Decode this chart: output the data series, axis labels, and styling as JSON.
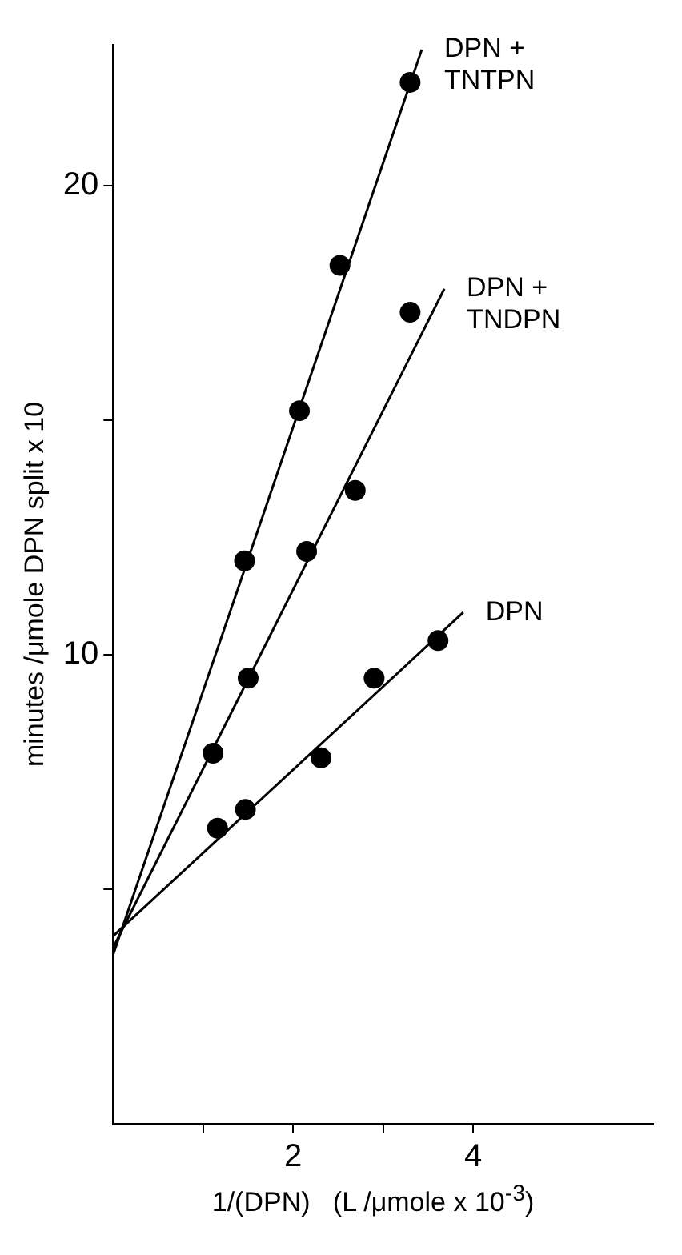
{
  "chart_data": {
    "type": "scatter",
    "xlabel": "1/(DPN)   (L /μmole x 10$^{-3}$)",
    "ylabel": "minutes /μmole DPN split x 10",
    "xlim": [
      0,
      6
    ],
    "ylim": [
      0,
      23
    ],
    "xticks": [
      {
        "value": 1,
        "label": null
      },
      2,
      {
        "value": 3,
        "label": null
      },
      4
    ],
    "yticks": [
      {
        "value": 5,
        "label": null
      },
      10,
      {
        "value": 15,
        "label": null
      },
      20
    ],
    "grid": false,
    "legend": false,
    "marker": "circle",
    "series": [
      {
        "color": "#000000",
        "x": [
          1.46,
          2.07,
          2.52,
          3.3
        ],
        "values": [
          12.0,
          15.2,
          18.3,
          22.2
        ]
      },
      {
        "type": "line",
        "name": "DPN + TNTPN",
        "color": "#000000",
        "marker": "none",
        "line_style": "solid",
        "x": [
          0,
          3.43
        ],
        "values": [
          3.6,
          22.9
        ]
      },
      {
        "color": "#000000",
        "x": [
          1.11,
          1.5,
          2.15,
          2.69,
          3.3
        ],
        "values": [
          7.9,
          9.5,
          12.2,
          13.5,
          17.3
        ]
      },
      {
        "type": "line",
        "name": "DPN + TNDPN",
        "color": "#000000",
        "marker": "none",
        "line_style": "solid",
        "x": [
          0,
          3.68
        ],
        "values": [
          3.75,
          17.8
        ]
      },
      {
        "color": "#000000",
        "x": [
          1.16,
          1.47,
          2.31,
          2.9,
          3.61
        ],
        "values": [
          6.3,
          6.7,
          7.8,
          9.5,
          10.3
        ]
      },
      {
        "type": "line",
        "name": "DPN",
        "color": "#000000",
        "marker": "none",
        "line_style": "solid",
        "x": [
          0,
          3.89
        ],
        "values": [
          4.0,
          10.9
        ]
      }
    ]
  }
}
